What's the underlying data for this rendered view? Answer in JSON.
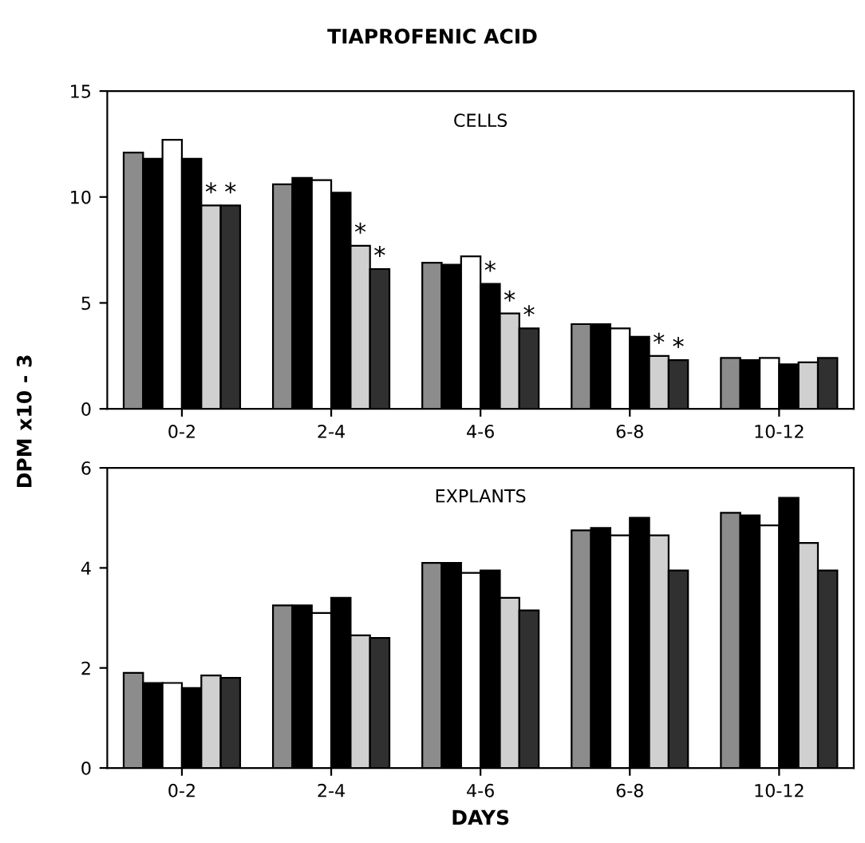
{
  "chart_data": [
    {
      "type": "bar",
      "title": "TIAPROFENIC ACID",
      "ylabel": "DPM x10 - 3",
      "annotations": [
        "CELLS",
        {
          "text": "*",
          "x": "0-2",
          "y": 9.6
        },
        {
          "text": "*",
          "x": "0-2",
          "y": 9.6
        },
        {
          "text": "*",
          "x": "2-4",
          "y": 7.7
        },
        {
          "text": "*",
          "x": "2-4",
          "y": 6.6
        },
        {
          "text": "*",
          "x": "4-6",
          "y": 5.9
        },
        {
          "text": "*",
          "x": "4-6",
          "y": 4.5
        },
        {
          "text": "*",
          "x": "4-6",
          "y": 3.8
        },
        {
          "text": "*",
          "x": "6-8",
          "y": 2.5
        },
        {
          "text": "*",
          "x": "6-8",
          "y": 2.3
        }
      ],
      "categories": [
        "0-2",
        "2-4",
        "4-6",
        "6-8",
        "10-12"
      ],
      "series": [
        {
          "color": "#8c8c8c",
          "values": [
            12.1,
            10.6,
            6.9,
            4.0,
            2.4
          ]
        },
        {
          "color": "#000000",
          "values": [
            11.8,
            10.9,
            6.8,
            4.0,
            2.3
          ]
        },
        {
          "color": "#ffffff",
          "values": [
            12.7,
            10.8,
            7.2,
            3.8,
            2.4
          ]
        },
        {
          "color": "#000000",
          "values": [
            11.8,
            10.2,
            5.9,
            3.4,
            2.1
          ]
        },
        {
          "color": "#d0d0d0",
          "values": [
            9.6,
            7.7,
            4.5,
            2.5,
            2.2
          ]
        },
        {
          "color": "#303030",
          "values": [
            9.6,
            6.6,
            3.8,
            2.3,
            2.4
          ]
        }
      ],
      "ylim": [
        0,
        15
      ],
      "yticks": [
        0,
        5,
        10,
        15
      ],
      "grid": false
    },
    {
      "type": "bar",
      "xlabel": "DAYS",
      "annotations": [
        "EXPLANTS"
      ],
      "categories": [
        "0-2",
        "2-4",
        "4-6",
        "6-8",
        "10-12"
      ],
      "series": [
        {
          "color": "#8c8c8c",
          "values": [
            1.9,
            3.25,
            4.1,
            4.75,
            5.1
          ]
        },
        {
          "color": "#000000",
          "values": [
            1.7,
            3.25,
            4.1,
            4.8,
            5.05
          ]
        },
        {
          "color": "#ffffff",
          "values": [
            1.7,
            3.1,
            3.9,
            4.65,
            4.85
          ]
        },
        {
          "color": "#000000",
          "values": [
            1.6,
            3.4,
            3.95,
            5.0,
            5.4
          ]
        },
        {
          "color": "#d0d0d0",
          "values": [
            1.85,
            2.65,
            3.4,
            4.65,
            4.5
          ]
        },
        {
          "color": "#303030",
          "values": [
            1.8,
            2.6,
            3.15,
            3.95,
            3.95
          ]
        }
      ],
      "ylim": [
        0,
        6
      ],
      "yticks": [
        0,
        2,
        4,
        6
      ],
      "grid": false
    }
  ]
}
